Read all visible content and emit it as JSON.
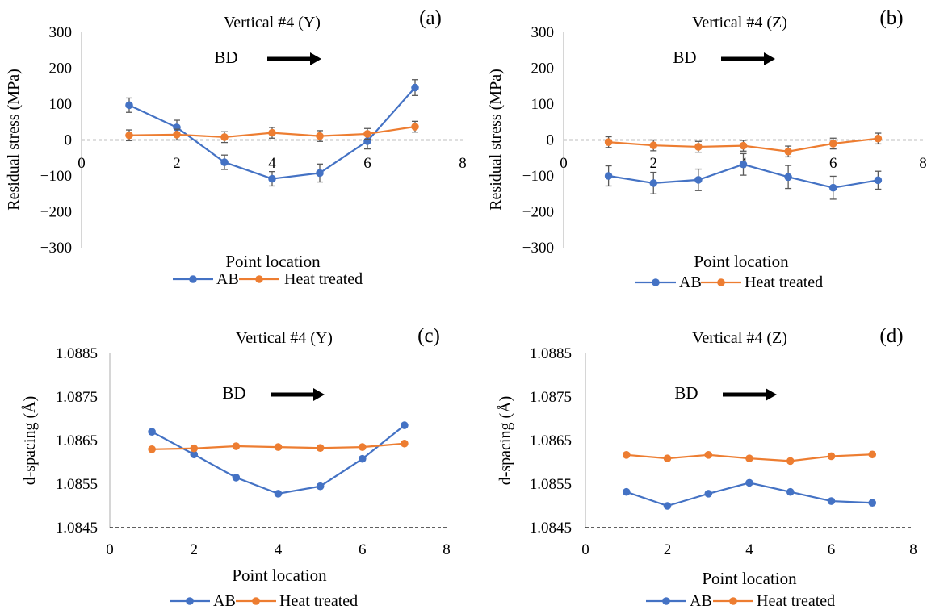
{
  "legend": {
    "ab_label": "AB",
    "ht_label": "Heat treated"
  },
  "colors": {
    "ab": "#4472C4",
    "ht": "#ED7D31",
    "axis": "#BFBFBF",
    "text": "#000000"
  },
  "bd_label": "BD",
  "chart_data": [
    {
      "id": "a",
      "type": "line",
      "panel_label": "(a)",
      "title": "Vertical #4 (Y)",
      "xlabel": "Point location",
      "ylabel": "Residual stress (MPa)",
      "xlim": [
        0,
        8
      ],
      "ylim": [
        -300,
        300
      ],
      "x_ticks": [
        "0",
        "2",
        "4",
        "6",
        "8"
      ],
      "y_ticks": [
        "300",
        "200",
        "100",
        "0",
        "−100",
        "−200",
        "−300"
      ],
      "zero_line": 0,
      "legend_position": "bottom",
      "series": [
        {
          "name": "AB",
          "x": [
            1,
            2,
            3,
            4,
            5,
            6,
            7
          ],
          "values": [
            97,
            35,
            -62,
            -108,
            -92,
            -3,
            146
          ],
          "errors": [
            20,
            20,
            20,
            20,
            25,
            22,
            22
          ]
        },
        {
          "name": "Heat treated",
          "x": [
            1,
            2,
            3,
            4,
            5,
            6,
            7
          ],
          "values": [
            13,
            15,
            8,
            20,
            11,
            17,
            37
          ],
          "errors": [
            15,
            15,
            15,
            15,
            15,
            15,
            15
          ]
        }
      ]
    },
    {
      "id": "b",
      "type": "line",
      "panel_label": "(b)",
      "title": "Vertical #4 (Z)",
      "xlabel": "Point location",
      "ylabel": "Residual stress (MPa)",
      "xlim": [
        0,
        8
      ],
      "ylim": [
        -300,
        300
      ],
      "x_ticks": [
        "0",
        "2",
        "4",
        "6",
        "8"
      ],
      "y_ticks": [
        "300",
        "200",
        "100",
        "0",
        "−100",
        "−200",
        "−300"
      ],
      "zero_line": 0,
      "legend_position": "bottom",
      "series": [
        {
          "name": "AB",
          "x": [
            1,
            2,
            3,
            4,
            5,
            6,
            7
          ],
          "values": [
            -100,
            -120,
            -111,
            -68,
            -103,
            -133,
            -112
          ],
          "errors": [
            28,
            30,
            30,
            30,
            32,
            32,
            25
          ]
        },
        {
          "name": "Heat treated",
          "x": [
            1,
            2,
            3,
            4,
            5,
            6,
            7
          ],
          "values": [
            -6,
            -15,
            -19,
            -16,
            -32,
            -10,
            4
          ],
          "errors": [
            15,
            15,
            15,
            15,
            15,
            15,
            15
          ]
        }
      ]
    },
    {
      "id": "c",
      "type": "line",
      "panel_label": "(c)",
      "title": "Vertical #4 (Y)",
      "xlabel": "Point location",
      "ylabel": "d-spacing (Å)",
      "xlim": [
        0,
        8
      ],
      "ylim": [
        1.0845,
        1.0885
      ],
      "x_ticks": [
        "0",
        "2",
        "4",
        "6",
        "8"
      ],
      "y_ticks": [
        "1.0885",
        "1.0875",
        "1.0865",
        "1.0855",
        "1.0845"
      ],
      "legend_position": "bottom",
      "series": [
        {
          "name": "AB",
          "x": [
            1,
            2,
            3,
            4,
            5,
            6,
            7
          ],
          "values": [
            1.0867,
            1.08618,
            1.08565,
            1.08528,
            1.08545,
            1.08608,
            1.08685
          ]
        },
        {
          "name": "Heat treated",
          "x": [
            1,
            2,
            3,
            4,
            5,
            6,
            7
          ],
          "values": [
            1.0863,
            1.08632,
            1.08637,
            1.08635,
            1.08633,
            1.08635,
            1.08643
          ]
        }
      ]
    },
    {
      "id": "d",
      "type": "line",
      "panel_label": "(d)",
      "title": "Vertical #4 (Z)",
      "xlabel": "Point location",
      "ylabel": "d-spacing (Å)",
      "xlim": [
        0,
        8
      ],
      "ylim": [
        1.0845,
        1.0885
      ],
      "x_ticks": [
        "0",
        "2",
        "4",
        "6",
        "8"
      ],
      "y_ticks": [
        "1.0885",
        "1.0875",
        "1.0865",
        "1.0855",
        "1.0845"
      ],
      "legend_position": "bottom",
      "series": [
        {
          "name": "AB",
          "x": [
            1,
            2,
            3,
            4,
            5,
            6,
            7
          ],
          "values": [
            1.08532,
            1.085,
            1.08528,
            1.08553,
            1.08532,
            1.08511,
            1.08507
          ]
        },
        {
          "name": "Heat treated",
          "x": [
            1,
            2,
            3,
            4,
            5,
            6,
            7
          ],
          "values": [
            1.08617,
            1.08609,
            1.08617,
            1.08609,
            1.08603,
            1.08614,
            1.08618
          ]
        }
      ]
    }
  ]
}
